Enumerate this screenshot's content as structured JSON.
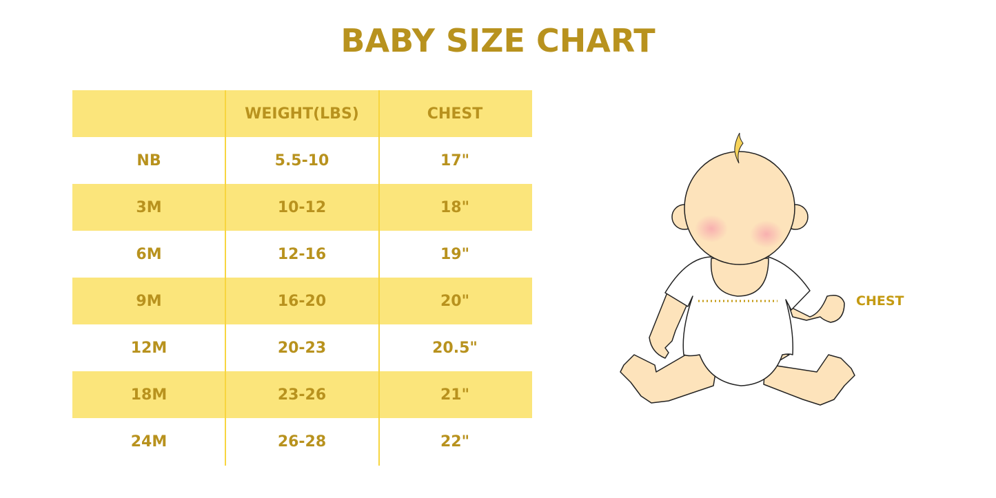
{
  "title": "BABY SIZE CHART",
  "table": {
    "headers": [
      "",
      "WEIGHT(LBS)",
      "CHEST"
    ],
    "rows": [
      [
        "NB",
        "5.5-10",
        "17\""
      ],
      [
        "3M",
        "10-12",
        "18\""
      ],
      [
        "6M",
        "12-16",
        "19\""
      ],
      [
        "9M",
        "16-20",
        "20\""
      ],
      [
        "12M",
        "20-23",
        "20.5\""
      ],
      [
        "18M",
        "23-26",
        "21\""
      ],
      [
        "24M",
        "26-28",
        "22\""
      ]
    ]
  },
  "illustration": {
    "label": "CHEST"
  },
  "colors": {
    "text": "#b8921e",
    "band": "#fbe57b",
    "divider": "#f7d53f",
    "skin": "#fde3bb"
  }
}
